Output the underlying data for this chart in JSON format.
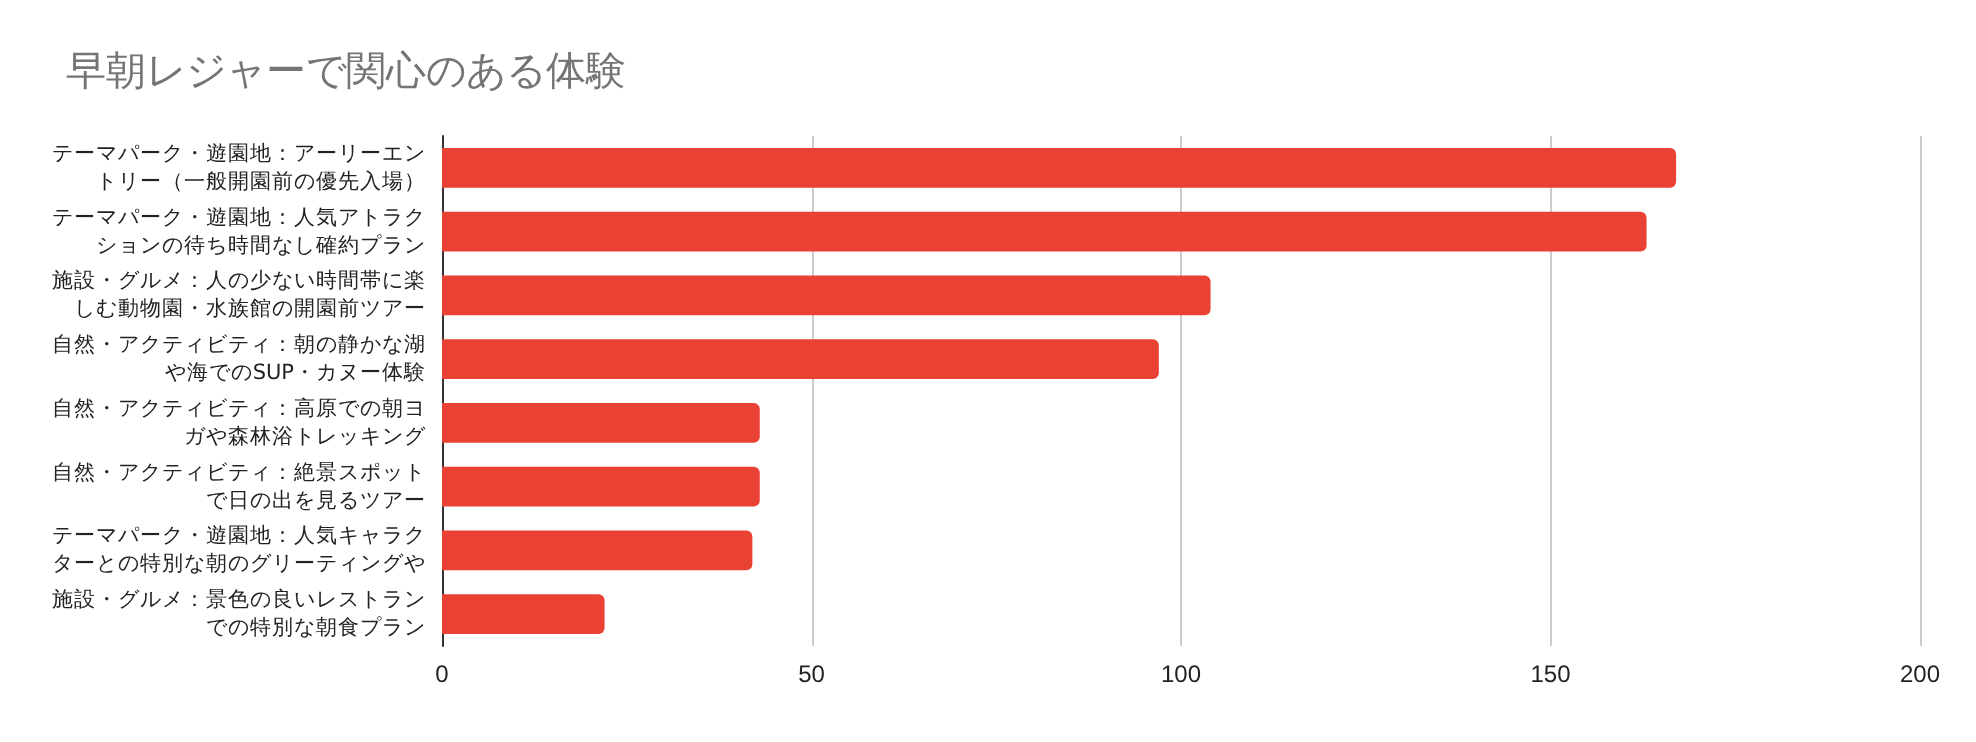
{
  "chart_data": {
    "type": "bar",
    "orientation": "horizontal",
    "title": "早朝レジャーで関心のある体験",
    "categories": [
      "テーマパーク・遊園地：アーリーエントリー（一般開園前の優先入場）",
      "テーマパーク・遊園地：人気アトラクションの待ち時間なし確約プラン",
      "施設・グルメ：人の少ない時間帯に楽しむ動物園・水族館の開園前ツアー",
      "自然・アクティビティ：朝の静かな湖や海でのSUP・カヌー体験",
      "自然・アクティビティ：高原での朝ヨガや森林浴トレッキング",
      "自然・アクティビティ：絶景スポットで日の出を見るツアー",
      "テーマパーク・遊園地：人気キャラクターとの特別な朝のグリーティングや",
      "施設・グルメ：景色の良いレストランでの特別な朝食プラン"
    ],
    "values": [
      167,
      163,
      104,
      97,
      43,
      43,
      42,
      22
    ],
    "color": "#e94235",
    "xlim": [
      0,
      200
    ],
    "xticks": [
      0,
      50,
      100,
      150,
      200
    ],
    "grid": "x"
  }
}
